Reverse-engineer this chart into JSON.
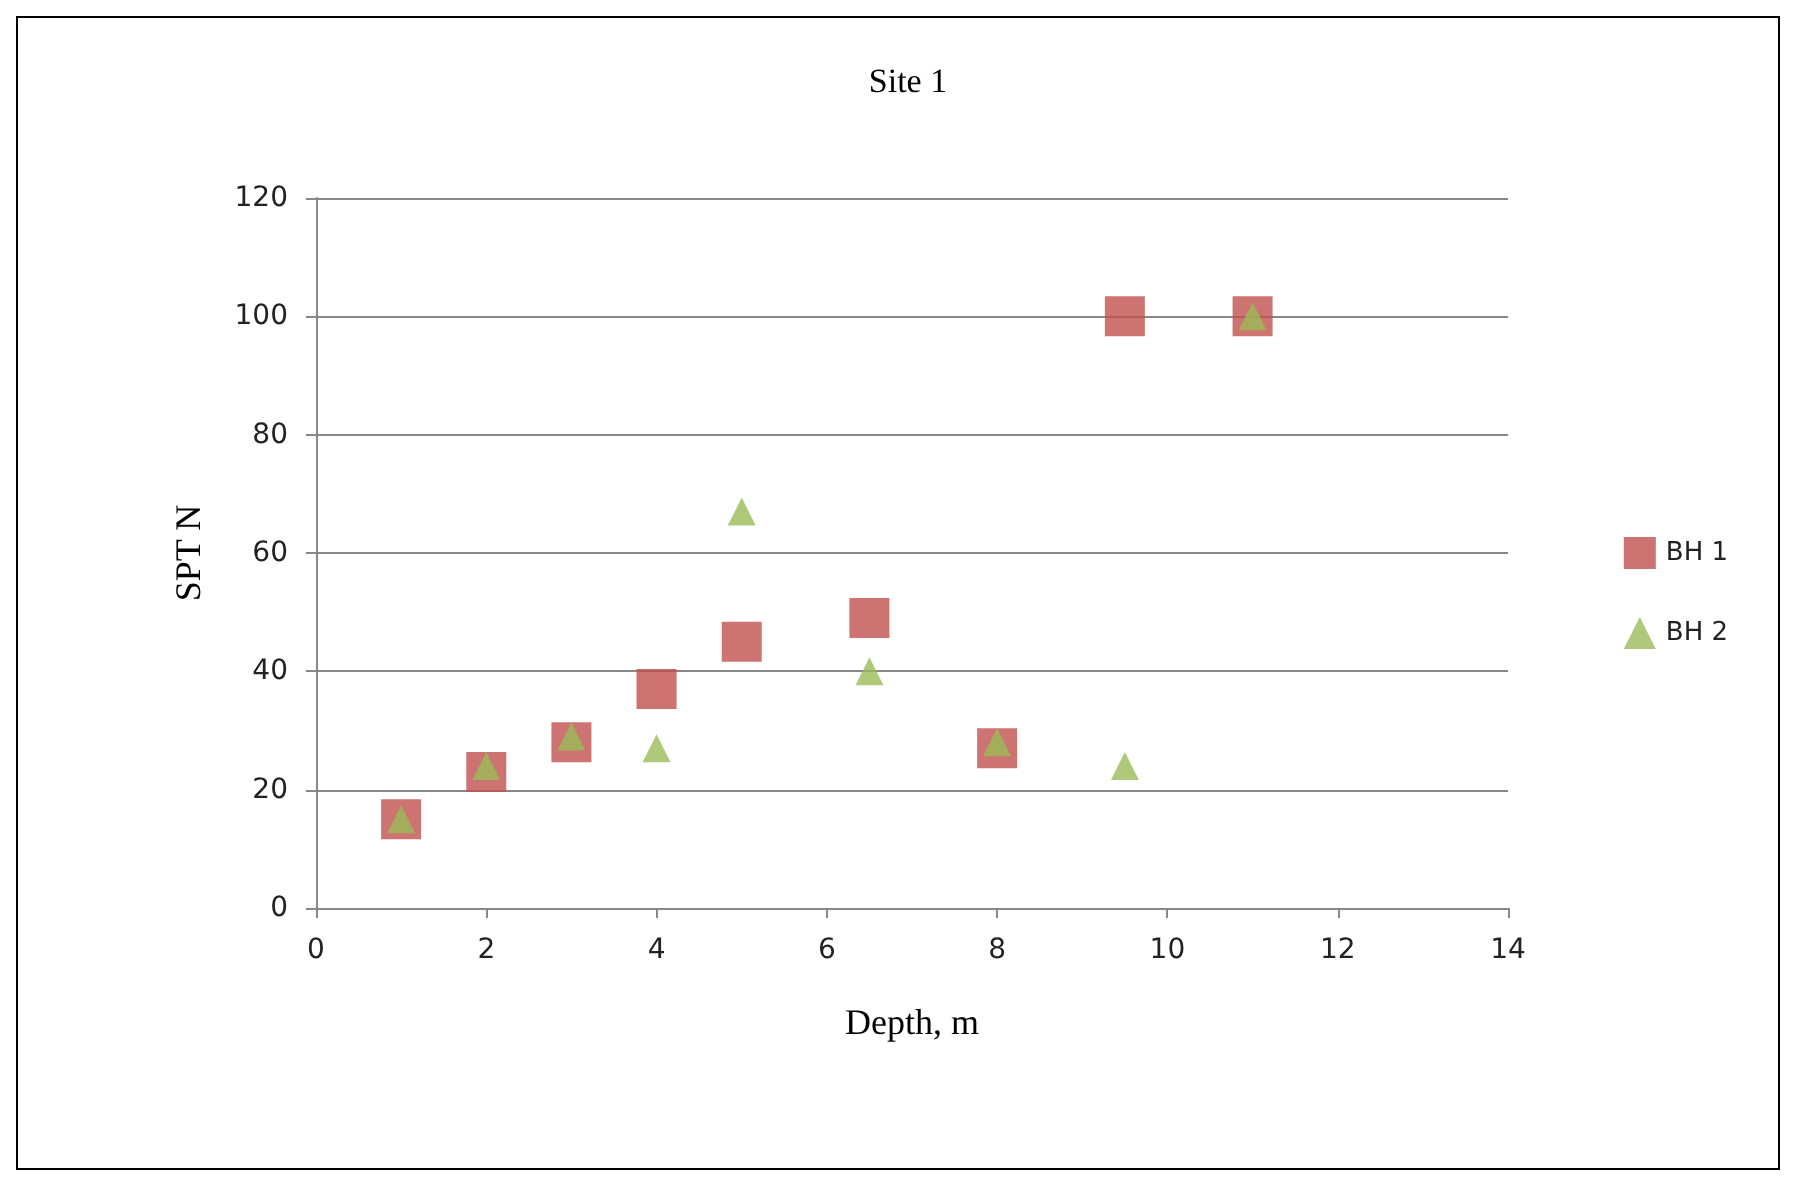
{
  "chart_data": {
    "type": "scatter",
    "title": "Site 1",
    "xlabel": "Depth, m",
    "ylabel": "SPT N",
    "x": [
      1,
      2,
      3,
      4,
      5,
      6.5,
      8,
      9.5,
      11
    ],
    "series": [
      {
        "name": "BH 1",
        "color": "#c0504d",
        "marker": "square",
        "values": [
          15,
          23,
          28,
          37,
          45,
          49,
          27,
          100,
          100
        ]
      },
      {
        "name": "BH 2",
        "color": "#9bbb59",
        "marker": "triangle",
        "values": [
          15,
          24,
          29,
          27,
          67,
          40,
          28,
          24,
          100
        ]
      }
    ],
    "xlim": [
      0,
      14
    ],
    "xticks": [
      0,
      2,
      4,
      6,
      8,
      10,
      12,
      14
    ],
    "ylim": [
      0,
      120
    ],
    "yticks": [
      0,
      20,
      40,
      60,
      80,
      100,
      120
    ],
    "grid": "y",
    "legend": "right"
  }
}
